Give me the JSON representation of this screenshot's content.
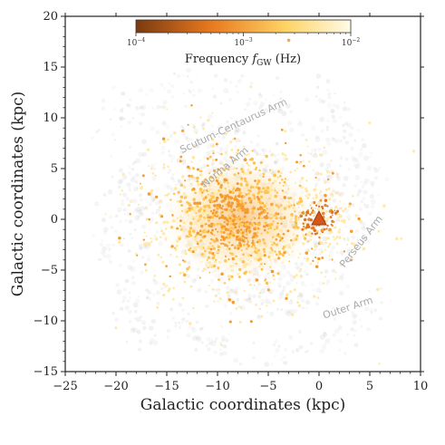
{
  "chart_data": {
    "type": "scatter",
    "xlabel": "Galactic coordinates (kpc)",
    "ylabel": "Galactic coordinates (kpc)",
    "xlim": [
      -25,
      10
    ],
    "ylim": [
      -15,
      20
    ],
    "xticks": [
      "−25",
      "−20",
      "−15",
      "−10",
      "−5",
      "0",
      "5",
      "10"
    ],
    "xtick_values": [
      -25,
      -20,
      -15,
      -10,
      -5,
      0,
      5,
      10
    ],
    "yticks": [
      "20",
      "15",
      "10",
      "5",
      "0",
      "−5",
      "−10",
      "−15"
    ],
    "ytick_values": [
      20,
      15,
      10,
      5,
      0,
      -5,
      -10,
      -15
    ],
    "colorbar": {
      "label": "Frequency f_GW (Hz)",
      "label_main": "Frequency ",
      "label_var": "f",
      "label_sub": "GW",
      "label_unit": " (Hz)",
      "ticks": [
        {
          "base": "10",
          "exp": "−4",
          "value": 0.0001
        },
        {
          "base": "10",
          "exp": "−3",
          "value": 0.001
        },
        {
          "base": "10",
          "exp": "−2",
          "value": 0.01
        }
      ],
      "range": [
        0.0001,
        0.01
      ],
      "scale": "log",
      "colors": [
        "#7a3a10",
        "#e8791e",
        "#ffd466",
        "#fffbe8"
      ]
    },
    "arm_labels": [
      "Scutum-Centaurus Arm",
      "Perseus Arm",
      "Outer Arm",
      "Norma Arm"
    ],
    "observer_marker": {
      "x": 0,
      "y": 0,
      "shape": "triangle",
      "color": "#d2571a"
    },
    "galactic_center": {
      "x": -8,
      "y": 0
    },
    "point_color_scale": [
      "#ffe9a8",
      "#ffc24d",
      "#f39a2e",
      "#e0701c"
    ]
  }
}
